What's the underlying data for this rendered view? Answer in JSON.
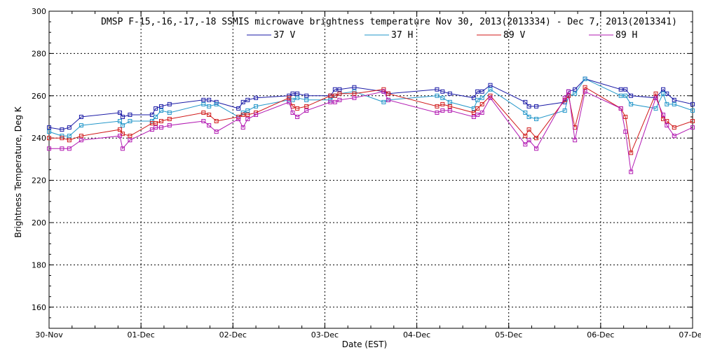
{
  "chart_data": {
    "type": "line",
    "title": "DMSP F-15,-16,-17,-18 SSMIS microwave brightness temperature Nov 30, 2013(2013334) - Dec  7, 2013(2013341)",
    "xlabel": "Date (EST)",
    "ylabel": "Brightness Temperature, Deg K",
    "ylim": [
      150,
      300
    ],
    "xlim": [
      0,
      7
    ],
    "yticks": [
      160,
      180,
      200,
      220,
      240,
      260,
      280,
      300
    ],
    "xtick_labels": [
      "30-Nov",
      "01-Dec",
      "02-Dec",
      "03-Dec",
      "04-Dec",
      "05-Dec",
      "06-Dec",
      "07-Dec"
    ],
    "grid": true,
    "legend_position": "top-center",
    "x_units": "days since 30-Nov 00:00 EST",
    "series": [
      {
        "name": "37 V",
        "color": "#1a1aa6",
        "x": [
          0.0,
          0.14,
          0.22,
          0.35,
          0.77,
          0.8,
          0.88,
          1.12,
          1.16,
          1.22,
          1.31,
          1.68,
          1.74,
          1.82,
          2.06,
          2.11,
          2.16,
          2.25,
          2.61,
          2.65,
          2.7,
          2.8,
          3.06,
          3.11,
          3.16,
          3.32,
          3.64,
          3.69,
          4.22,
          4.28,
          4.36,
          4.62,
          4.66,
          4.71,
          4.8,
          5.18,
          5.22,
          5.3,
          5.61,
          5.65,
          5.72,
          5.83,
          6.22,
          6.27,
          6.33,
          6.6,
          6.68,
          6.72,
          6.8,
          7.0
        ],
        "values": [
          245,
          244,
          245,
          250,
          252,
          250,
          251,
          251,
          254,
          255,
          256,
          258,
          258,
          257,
          254,
          257,
          258,
          259,
          260,
          261,
          261,
          260,
          260,
          263,
          263,
          264,
          262,
          261,
          263,
          262,
          261,
          259,
          262,
          262,
          265,
          257,
          255,
          255,
          257,
          262,
          263,
          268,
          263,
          263,
          260,
          259,
          263,
          261,
          258,
          256
        ]
      },
      {
        "name": "37 H",
        "color": "#2196c9",
        "x": [
          0.0,
          0.14,
          0.22,
          0.35,
          0.77,
          0.8,
          0.88,
          1.12,
          1.16,
          1.22,
          1.31,
          1.68,
          1.74,
          1.82,
          2.06,
          2.11,
          2.16,
          2.25,
          2.61,
          2.65,
          2.7,
          2.8,
          3.06,
          3.11,
          3.16,
          3.32,
          3.64,
          3.69,
          4.22,
          4.28,
          4.36,
          4.62,
          4.66,
          4.71,
          4.8,
          5.18,
          5.22,
          5.3,
          5.61,
          5.65,
          5.72,
          5.83,
          6.22,
          6.27,
          6.33,
          6.6,
          6.68,
          6.72,
          6.8,
          7.0
        ],
        "values": [
          243,
          241,
          241,
          246,
          248,
          246,
          248,
          248,
          250,
          253,
          252,
          256,
          255,
          256,
          250,
          252,
          253,
          255,
          258,
          258,
          259,
          258,
          258,
          260,
          261,
          262,
          257,
          258,
          260,
          259,
          257,
          254,
          258,
          259,
          263,
          252,
          250,
          249,
          253,
          260,
          261,
          268,
          260,
          260,
          256,
          254,
          261,
          256,
          256,
          253
        ]
      },
      {
        "name": "89 V",
        "color": "#d01818",
        "x": [
          0.0,
          0.14,
          0.22,
          0.35,
          0.77,
          0.8,
          0.88,
          1.12,
          1.16,
          1.22,
          1.31,
          1.68,
          1.74,
          1.82,
          2.06,
          2.11,
          2.16,
          2.25,
          2.61,
          2.65,
          2.7,
          2.8,
          3.06,
          3.11,
          3.16,
          3.32,
          3.64,
          3.69,
          4.22,
          4.28,
          4.36,
          4.62,
          4.66,
          4.71,
          4.8,
          5.18,
          5.22,
          5.3,
          5.61,
          5.65,
          5.72,
          5.83,
          6.22,
          6.27,
          6.33,
          6.6,
          6.68,
          6.72,
          6.8,
          7.0
        ],
        "values": [
          240,
          240,
          239,
          241,
          244,
          242,
          241,
          247,
          247,
          248,
          249,
          252,
          251,
          248,
          250,
          251,
          251,
          252,
          259,
          255,
          254,
          255,
          260,
          260,
          261,
          261,
          263,
          261,
          255,
          256,
          255,
          252,
          254,
          256,
          260,
          241,
          244,
          240,
          258,
          260,
          245,
          264,
          254,
          250,
          233,
          261,
          249,
          248,
          245,
          248
        ]
      },
      {
        "name": "89 H",
        "color": "#b219b2",
        "x": [
          0.0,
          0.14,
          0.22,
          0.35,
          0.77,
          0.8,
          0.88,
          1.12,
          1.16,
          1.22,
          1.31,
          1.68,
          1.74,
          1.82,
          2.06,
          2.11,
          2.16,
          2.25,
          2.61,
          2.65,
          2.7,
          2.8,
          3.06,
          3.11,
          3.16,
          3.32,
          3.64,
          3.69,
          4.22,
          4.28,
          4.36,
          4.62,
          4.66,
          4.71,
          4.8,
          5.18,
          5.22,
          5.3,
          5.61,
          5.65,
          5.72,
          5.83,
          6.22,
          6.27,
          6.33,
          6.6,
          6.68,
          6.72,
          6.8,
          7.0
        ],
        "values": [
          235,
          235,
          235,
          239,
          241,
          235,
          239,
          244,
          245,
          245,
          246,
          248,
          246,
          243,
          249,
          245,
          249,
          251,
          257,
          252,
          250,
          253,
          257,
          257,
          258,
          259,
          262,
          258,
          252,
          253,
          253,
          250,
          251,
          252,
          259,
          237,
          239,
          235,
          259,
          262,
          239,
          262,
          254,
          243,
          224,
          259,
          251,
          246,
          241,
          245
        ]
      }
    ]
  }
}
